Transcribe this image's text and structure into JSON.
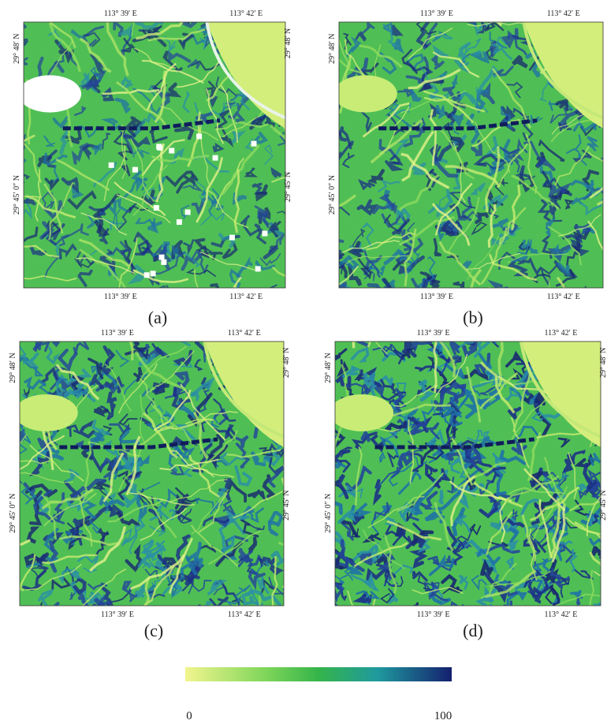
{
  "panels": [
    {
      "label": "(a)",
      "top_labels": [
        "113° 39′ E",
        "113° 42′ E"
      ],
      "bottom_labels": [
        "113° 39′ E",
        "113° 42′ E"
      ],
      "left_labels": [
        "29° 48′ N",
        "29° 45′ 0″ N"
      ],
      "right_labels": [
        "29° 48′ N",
        "29° 45′ N"
      ]
    },
    {
      "label": "(b)",
      "top_labels": [
        "113° 39′ E",
        "113° 42′ E"
      ],
      "bottom_labels": [
        "113° 39′ E",
        "113° 42′ E"
      ],
      "left_labels": [
        "29° 48′ N",
        "29° 45′ 0″ N"
      ]
    },
    {
      "label": "(c)",
      "top_labels": [
        "113° 39′ E",
        "113° 42′ E"
      ],
      "bottom_labels": [
        "113° 39′ E",
        "113° 42′ E"
      ],
      "left_labels": [
        "29° 48′ N",
        "29° 45′ 0″ N"
      ],
      "right_labels": [
        "29° 48′ N",
        "29° 45′ N"
      ]
    },
    {
      "label": "(d)",
      "top_labels": [
        "113° 39′ E",
        "113° 42′ E"
      ],
      "bottom_labels": [
        "113° 39′ E",
        "113° 42′ E"
      ],
      "left_labels": [
        "29° 48′ N",
        "29° 45′ 0″ N"
      ],
      "right_labels": [
        "29° 48′ N",
        "29° 45′ N"
      ]
    }
  ],
  "colorbar": {
    "min_label": "0",
    "max_label": "100"
  }
}
